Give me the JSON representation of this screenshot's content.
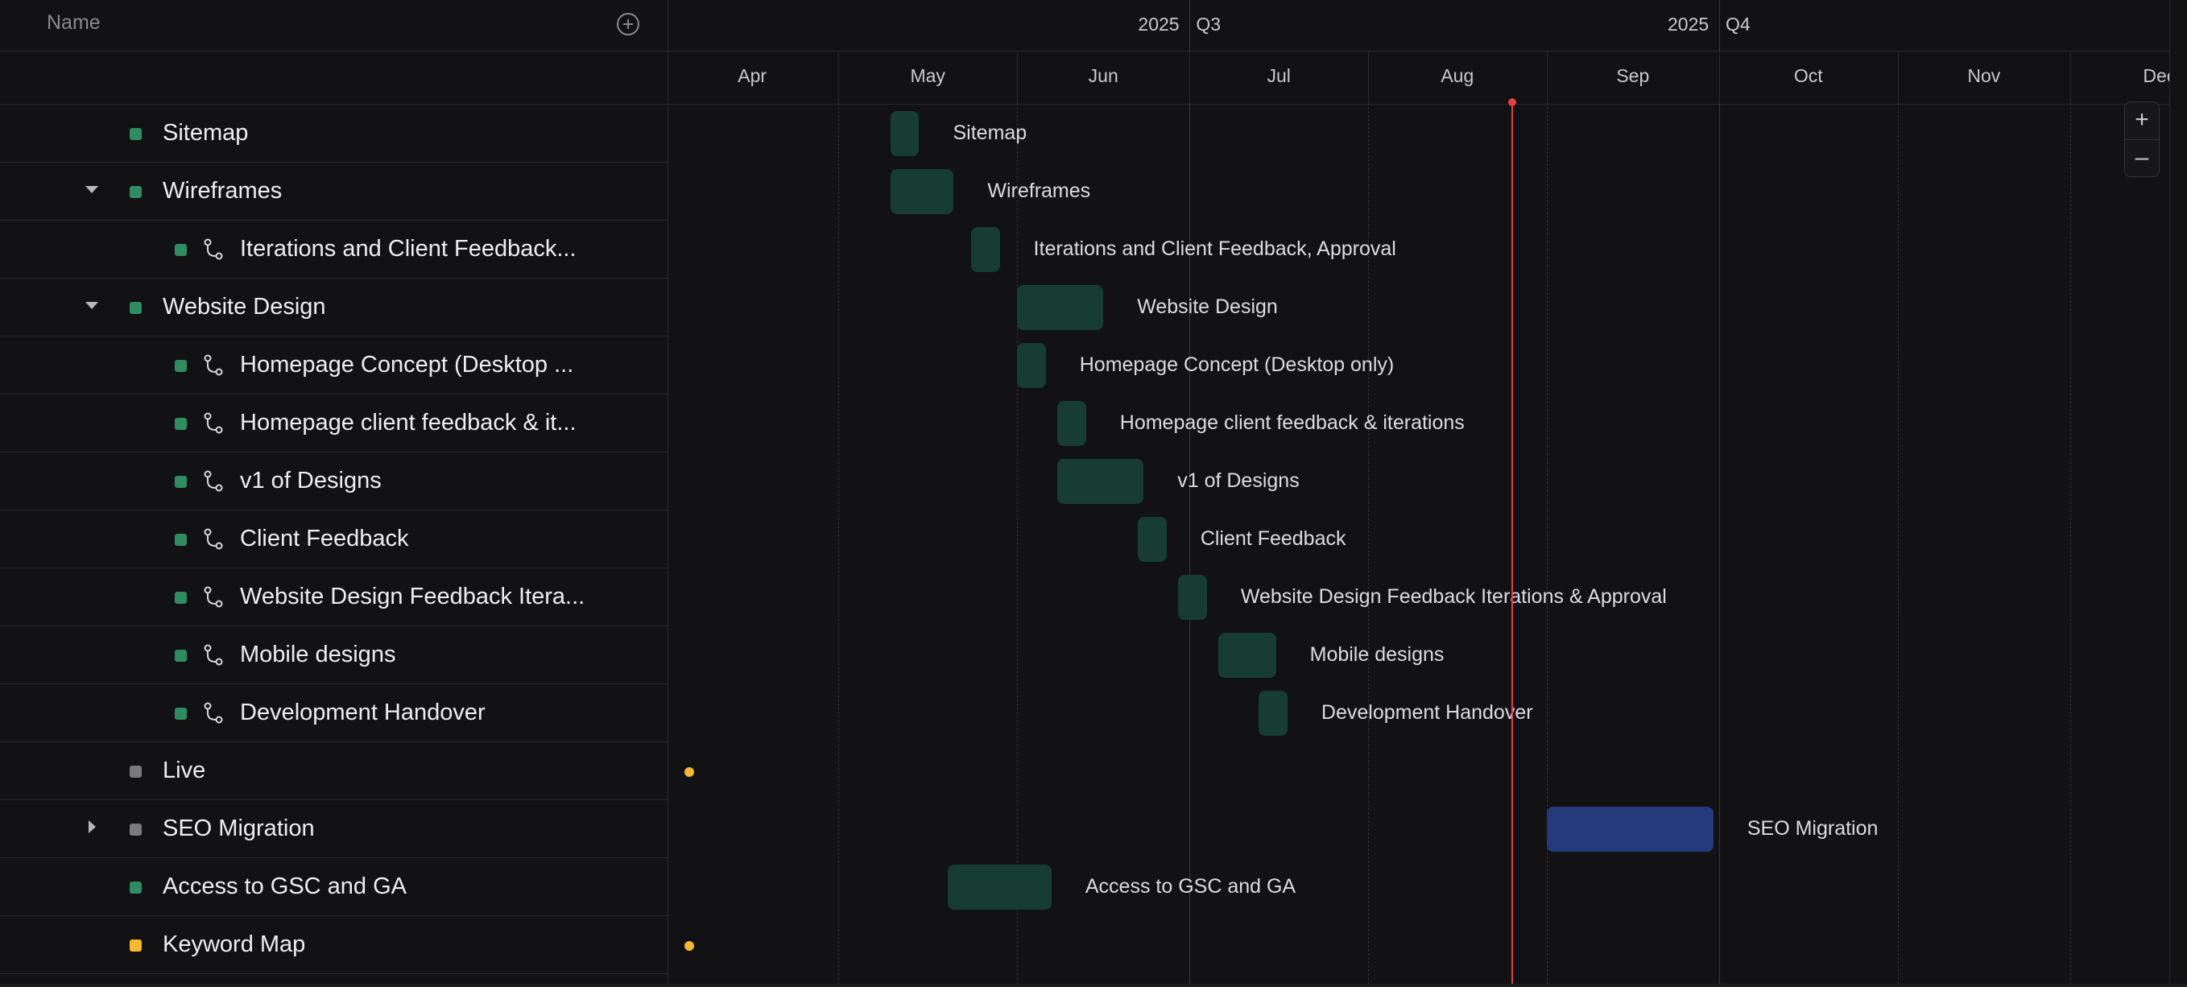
{
  "list": {
    "name_header": "Name",
    "rows": [
      {
        "label": "Sitemap",
        "level": 1,
        "caret": "",
        "color": "#2f8c62",
        "sub": false
      },
      {
        "label": "Wireframes",
        "level": 1,
        "caret": "down",
        "color": "#2f8c62",
        "sub": false
      },
      {
        "label": "Iterations and Client Feedback...",
        "level": 2,
        "caret": "",
        "color": "#2f8c62",
        "sub": true
      },
      {
        "label": "Website Design",
        "level": 1,
        "caret": "down",
        "color": "#2f8c62",
        "sub": false
      },
      {
        "label": "Homepage Concept (Desktop ...",
        "level": 2,
        "caret": "",
        "color": "#2f8c62",
        "sub": true
      },
      {
        "label": "Homepage client feedback & it...",
        "level": 2,
        "caret": "",
        "color": "#2f8c62",
        "sub": true
      },
      {
        "label": "v1 of Designs",
        "level": 2,
        "caret": "",
        "color": "#2f8c62",
        "sub": true
      },
      {
        "label": "Client Feedback",
        "level": 2,
        "caret": "",
        "color": "#2f8c62",
        "sub": true
      },
      {
        "label": "Website Design Feedback Itera...",
        "level": 2,
        "caret": "",
        "color": "#2f8c62",
        "sub": true
      },
      {
        "label": "Mobile designs",
        "level": 2,
        "caret": "",
        "color": "#2f8c62",
        "sub": true
      },
      {
        "label": "Development Handover",
        "level": 2,
        "caret": "",
        "color": "#2f8c62",
        "sub": true
      },
      {
        "label": "Live",
        "level": 1,
        "caret": "",
        "color": "#7a797e",
        "sub": false
      },
      {
        "label": "SEO Migration",
        "level": 1,
        "caret": "right",
        "color": "#7a797e",
        "sub": false
      },
      {
        "label": "Access to GSC and GA",
        "level": 1,
        "caret": "",
        "color": "#2f8c62",
        "sub": false
      },
      {
        "label": "Keyword Map",
        "level": 1,
        "caret": "",
        "color": "#f5b82e",
        "sub": false
      }
    ]
  },
  "timeline": {
    "quarters": [
      {
        "year": "2025",
        "quarter": "Q3"
      },
      {
        "year": "2025",
        "quarter": "Q4"
      },
      {
        "year": "2025",
        "quarter": ""
      }
    ],
    "months": [
      "Apr",
      "May",
      "Jun",
      "Jul",
      "Aug",
      "Sep",
      "Oct",
      "Nov",
      "Dec"
    ],
    "tasks": [
      {
        "label": "Sitemap",
        "start": "2025-05-10",
        "end": "2025-05-15",
        "kind": "bar"
      },
      {
        "label": "Wireframes",
        "start": "2025-05-10",
        "end": "2025-05-21",
        "kind": "bar"
      },
      {
        "label": "Iterations and Client Feedback, Approval",
        "start": "2025-05-24",
        "end": "2025-05-29",
        "kind": "bar"
      },
      {
        "label": "Website Design",
        "start": "2025-06-01",
        "end": "2025-06-16",
        "kind": "bar"
      },
      {
        "label": "Homepage Concept (Desktop only)",
        "start": "2025-06-01",
        "end": "2025-06-06",
        "kind": "bar"
      },
      {
        "label": "Homepage client feedback & iterations",
        "start": "2025-06-08",
        "end": "2025-06-13",
        "kind": "bar"
      },
      {
        "label": "v1 of Designs",
        "start": "2025-06-08",
        "end": "2025-06-23",
        "kind": "bar"
      },
      {
        "label": "Client Feedback",
        "start": "2025-06-22",
        "end": "2025-06-27",
        "kind": "bar"
      },
      {
        "label": "Website Design Feedback Iterations & Approval",
        "start": "2025-06-29",
        "end": "2025-07-04",
        "kind": "bar"
      },
      {
        "label": "Mobile designs",
        "start": "2025-07-06",
        "end": "2025-07-16",
        "kind": "bar"
      },
      {
        "label": "Development Handover",
        "start": "2025-07-13",
        "end": "2025-07-18",
        "kind": "bar"
      },
      {
        "label": "",
        "start": "2025-04-05",
        "end": "2025-04-05",
        "kind": "milestone"
      },
      {
        "label": "SEO Migration",
        "start": "2025-09-01",
        "end": "2025-09-30",
        "kind": "bar-blue"
      },
      {
        "label": "Access to GSC and GA",
        "start": "2025-05-20",
        "end": "2025-06-07",
        "kind": "bar"
      },
      {
        "label": "",
        "start": "2025-04-05",
        "end": "2025-04-05",
        "kind": "milestone"
      }
    ],
    "today": "2025-08-26"
  },
  "zoom": {
    "in_label": "+",
    "out_label": "–"
  }
}
